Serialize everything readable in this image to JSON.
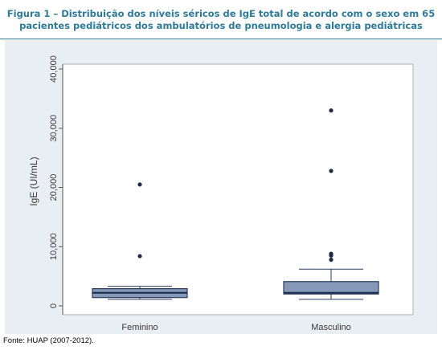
{
  "figure": {
    "caption_line1": "Figura 1 – Distribuição dos níveis séricos de IgE total de acordo com o sexo em 65",
    "caption_line2": "pacientes pediátricos dos ambulatórios de pneumologia e alergia pediátricas",
    "source": "Fonte: HUAP (2007-2012)."
  },
  "colors": {
    "caption": "#2e7a98",
    "panel_bg": "#e9eef2",
    "box_fill": "#8598b8",
    "box_stroke": "#2a3a5e",
    "median": "#1a2a4a",
    "outlier": "#1e2a48"
  },
  "chart_data": {
    "type": "boxplot",
    "ylabel": "IgE (UI/mL)",
    "xlabel": "",
    "ylim": [
      0,
      40000
    ],
    "yticks": [
      0,
      10000,
      20000,
      30000,
      40000
    ],
    "ytick_labels": [
      "0",
      "10,000",
      "20,000",
      "30,000",
      "40,000"
    ],
    "grid": false,
    "categories": [
      "Feminino",
      "Masculino"
    ],
    "boxes": [
      {
        "category": "Feminino",
        "whisker_low": 1100,
        "q1": 1400,
        "median": 2200,
        "q3": 2900,
        "whisker_high": 3300,
        "outliers": [
          8400,
          20500
        ]
      },
      {
        "category": "Masculino",
        "whisker_low": 1100,
        "q1": 2000,
        "median": 2200,
        "q3": 4100,
        "whisker_high": 6200,
        "outliers": [
          7800,
          8500,
          8800,
          22800,
          33000
        ]
      }
    ]
  }
}
